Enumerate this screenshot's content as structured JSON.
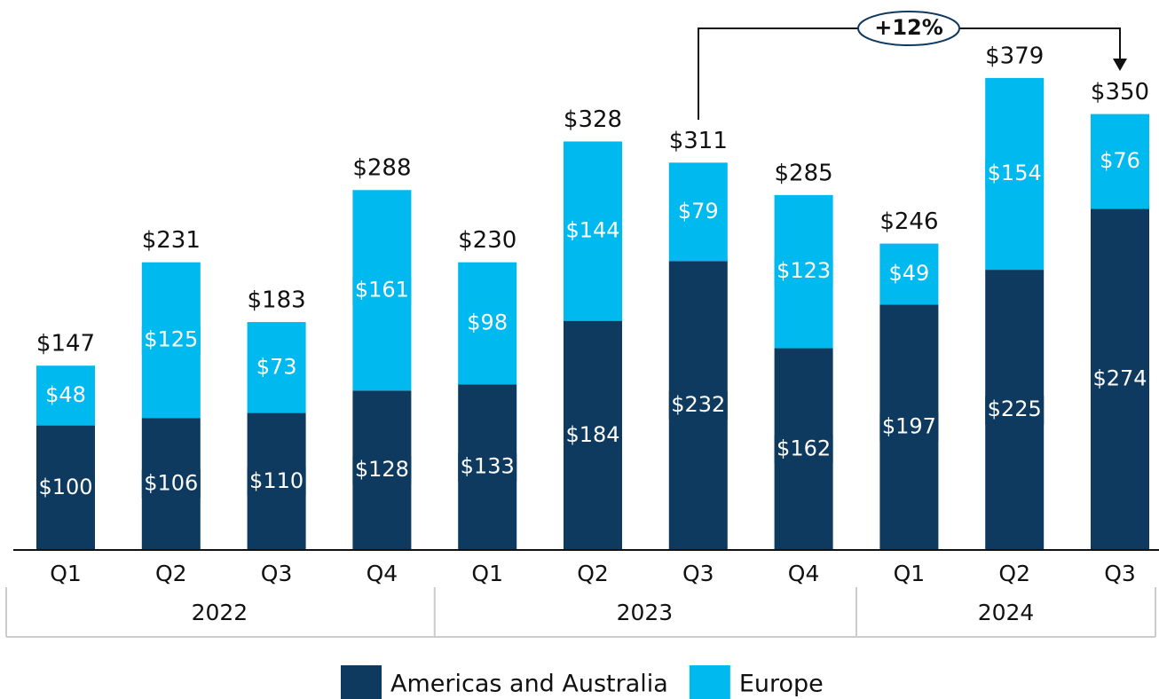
{
  "chart_data": {
    "type": "stacked-bar",
    "groups": [
      {
        "name": "2022",
        "categories": [
          "Q1",
          "Q2",
          "Q3",
          "Q4"
        ]
      },
      {
        "name": "2023",
        "categories": [
          "Q1",
          "Q2",
          "Q3",
          "Q4"
        ]
      },
      {
        "name": "2024",
        "categories": [
          "Q1",
          "Q2",
          "Q3"
        ]
      }
    ],
    "series": [
      {
        "name": "Americas and Australia",
        "color": "#0f3a5f",
        "values": [
          100,
          106,
          110,
          128,
          133,
          184,
          232,
          162,
          197,
          225,
          274
        ],
        "value_labels": [
          "$100",
          "$106",
          "$110",
          "$128",
          "$133",
          "$184",
          "$232",
          "$162",
          "$197",
          "$225",
          "$274"
        ]
      },
      {
        "name": "Europe",
        "color": "#00b9ef",
        "values": [
          48,
          125,
          73,
          161,
          98,
          144,
          79,
          123,
          49,
          154,
          76
        ],
        "value_labels": [
          "$48",
          "$125",
          "$73",
          "$161",
          "$98",
          "$144",
          "$79",
          "$123",
          "$49",
          "$154",
          "$76"
        ]
      }
    ],
    "totals": {
      "values": [
        147,
        231,
        183,
        288,
        230,
        328,
        311,
        285,
        246,
        379,
        350
      ],
      "value_labels": [
        "$147",
        "$231",
        "$183",
        "$288",
        "$230",
        "$328",
        "$311",
        "$285",
        "$246",
        "$379",
        "$350"
      ]
    },
    "annotation": "+12%",
    "ylim": [
      0,
      400
    ],
    "legend": "bottom"
  }
}
